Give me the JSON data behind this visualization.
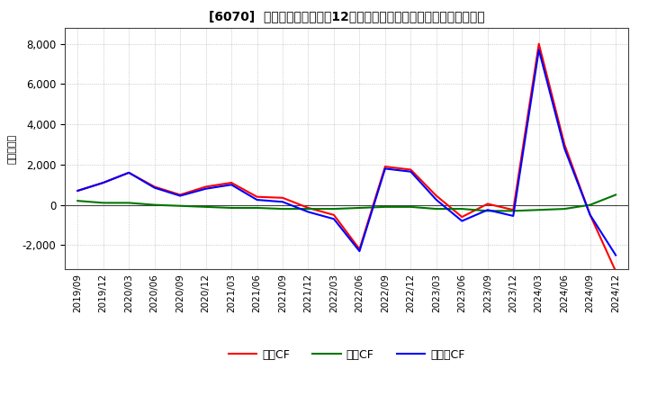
{
  "title": "[6070]  キャッシュフローの12か月移動合計の対前年同期増減額の推移",
  "ylabel": "（百万円）",
  "ylim": [
    -3200,
    8800
  ],
  "yticks": [
    -2000,
    0,
    2000,
    4000,
    6000,
    8000
  ],
  "x_labels": [
    "2019/09",
    "2019/12",
    "2020/03",
    "2020/06",
    "2020/09",
    "2020/12",
    "2021/03",
    "2021/06",
    "2021/09",
    "2021/12",
    "2022/03",
    "2022/06",
    "2022/09",
    "2022/12",
    "2023/03",
    "2023/06",
    "2023/09",
    "2023/12",
    "2024/03",
    "2024/06",
    "2024/09",
    "2024/12"
  ],
  "operating_cf": [
    700,
    1100,
    1600,
    900,
    500,
    900,
    1100,
    400,
    350,
    -150,
    -500,
    -2200,
    1900,
    1750,
    450,
    -600,
    50,
    -250,
    8000,
    3000,
    -500,
    -3300
  ],
  "investing_cf": [
    200,
    100,
    100,
    0,
    -50,
    -100,
    -150,
    -150,
    -200,
    -200,
    -200,
    -150,
    -100,
    -100,
    -200,
    -200,
    -300,
    -300,
    -250,
    -200,
    0,
    500
  ],
  "free_cf": [
    700,
    1100,
    1600,
    850,
    450,
    800,
    1000,
    250,
    150,
    -350,
    -700,
    -2300,
    1800,
    1650,
    250,
    -800,
    -250,
    -550,
    7700,
    2800,
    -500,
    -2500
  ],
  "operating_color": "#ff0000",
  "investing_color": "#007700",
  "free_color": "#0000ff",
  "background_color": "#ffffff",
  "grid_color": "#aaaaaa",
  "legend_labels": [
    "営業CF",
    "投資CF",
    "フリーCF"
  ]
}
